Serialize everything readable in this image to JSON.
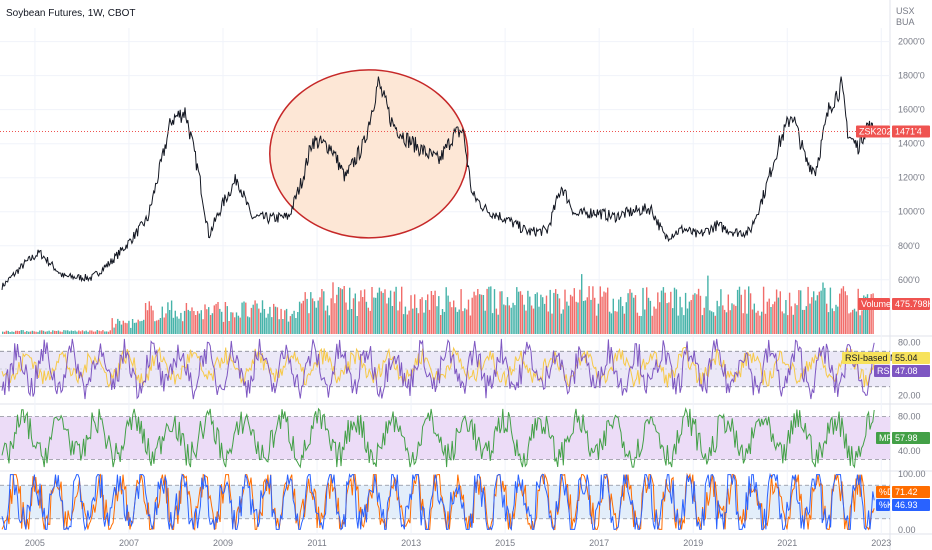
{
  "chart_data": {
    "type": "line",
    "title": "Soybean Futures, 1W, CBOT",
    "currency": "USX",
    "unit": "BUA",
    "x_ticks": [
      "2005",
      "2007",
      "2009",
      "2011",
      "2013",
      "2015",
      "2017",
      "2019",
      "2021",
      "2023"
    ],
    "x_range": [
      2004.6,
      2023.4
    ],
    "price": {
      "y_ticks": [
        "2000'0",
        "1800'0",
        "1600'0",
        "1400'0",
        "1200'0",
        "1000'0",
        "800'0",
        "600'0"
      ],
      "y_tick_values": [
        2000,
        1800,
        1600,
        1400,
        1200,
        1000,
        800,
        600
      ],
      "ylim": [
        540,
        2080
      ],
      "series": [
        {
          "x": 2004.6,
          "y": 560
        },
        {
          "x": 2005.1,
          "y": 700
        },
        {
          "x": 2005.4,
          "y": 760
        },
        {
          "x": 2005.9,
          "y": 620
        },
        {
          "x": 2006.5,
          "y": 610
        },
        {
          "x": 2006.9,
          "y": 700
        },
        {
          "x": 2007.3,
          "y": 820
        },
        {
          "x": 2007.7,
          "y": 960
        },
        {
          "x": 2008.0,
          "y": 1300
        },
        {
          "x": 2008.2,
          "y": 1540
        },
        {
          "x": 2008.5,
          "y": 1590
        },
        {
          "x": 2008.8,
          "y": 1200
        },
        {
          "x": 2009.0,
          "y": 860
        },
        {
          "x": 2009.3,
          "y": 1050
        },
        {
          "x": 2009.6,
          "y": 1200
        },
        {
          "x": 2009.9,
          "y": 970
        },
        {
          "x": 2010.3,
          "y": 960
        },
        {
          "x": 2010.7,
          "y": 970
        },
        {
          "x": 2011.0,
          "y": 1200
        },
        {
          "x": 2011.2,
          "y": 1420
        },
        {
          "x": 2011.6,
          "y": 1380
        },
        {
          "x": 2011.9,
          "y": 1200
        },
        {
          "x": 2012.3,
          "y": 1400
        },
        {
          "x": 2012.6,
          "y": 1760
        },
        {
          "x": 2012.9,
          "y": 1520
        },
        {
          "x": 2013.2,
          "y": 1430
        },
        {
          "x": 2013.6,
          "y": 1350
        },
        {
          "x": 2013.9,
          "y": 1300
        },
        {
          "x": 2014.2,
          "y": 1450
        },
        {
          "x": 2014.4,
          "y": 1480
        },
        {
          "x": 2014.6,
          "y": 1100
        },
        {
          "x": 2014.9,
          "y": 1010
        },
        {
          "x": 2015.3,
          "y": 960
        },
        {
          "x": 2015.8,
          "y": 880
        },
        {
          "x": 2016.2,
          "y": 890
        },
        {
          "x": 2016.5,
          "y": 1150
        },
        {
          "x": 2016.8,
          "y": 980
        },
        {
          "x": 2017.2,
          "y": 1000
        },
        {
          "x": 2017.6,
          "y": 970
        },
        {
          "x": 2018.0,
          "y": 1000
        },
        {
          "x": 2018.4,
          "y": 1020
        },
        {
          "x": 2018.7,
          "y": 850
        },
        {
          "x": 2019.1,
          "y": 900
        },
        {
          "x": 2019.4,
          "y": 860
        },
        {
          "x": 2019.8,
          "y": 920
        },
        {
          "x": 2020.2,
          "y": 880
        },
        {
          "x": 2020.5,
          "y": 880
        },
        {
          "x": 2020.8,
          "y": 1100
        },
        {
          "x": 2021.1,
          "y": 1380
        },
        {
          "x": 2021.4,
          "y": 1580
        },
        {
          "x": 2021.7,
          "y": 1300
        },
        {
          "x": 2021.9,
          "y": 1240
        },
        {
          "x": 2022.2,
          "y": 1620
        },
        {
          "x": 2022.45,
          "y": 1740
        },
        {
          "x": 2022.6,
          "y": 1450
        },
        {
          "x": 2022.8,
          "y": 1380
        },
        {
          "x": 2023.0,
          "y": 1510
        },
        {
          "x": 2023.15,
          "y": 1471
        }
      ],
      "last_label": "ZSK2023",
      "last_value": "1471'4",
      "last_numeric": 1471.5
    },
    "volume": {
      "label": "Volume",
      "value": "475.798K",
      "note": "weekly volume bars, green up / red down; low before 2007, rising to a plateau after 2011"
    },
    "rsi": {
      "y_ticks": [
        "80.00",
        "20.00"
      ],
      "ylim": [
        15,
        85
      ],
      "bands": [
        30,
        70
      ],
      "ma_label": "RSI-based MA",
      "ma_value": "55.04",
      "label": "RSI",
      "value": "47.08"
    },
    "mf": {
      "y_ticks": [
        "80.00",
        "40.00"
      ],
      "ylim": [
        20,
        90
      ],
      "bands": [
        20,
        80
      ],
      "label": "MF",
      "value": "57.98"
    },
    "stoch": {
      "y_ticks": [
        "100.00",
        "0.00"
      ],
      "ylim": [
        0,
        100
      ],
      "bands": [
        20,
        80
      ],
      "d_label": "%D",
      "d_value": "71.42",
      "k_label": "%K",
      "k_value": "46.93"
    },
    "annotation": "ellipse highlighting 2011–2014 price range",
    "colors": {
      "price_line": "#131722",
      "up": "#26a69a",
      "down": "#ef5350",
      "rsi_line": "#7e57c2",
      "rsi_ma": "#f7c948",
      "mf_line": "#43a047",
      "mf_fill": "#ecdcf7",
      "rsi_fill": "#ebe8f7",
      "stoch_fill": "#e3eefa",
      "stoch_d": "#ff6d00",
      "stoch_k": "#2962ff",
      "ellipse_stroke": "#c62828",
      "ellipse_fill": "#fde7d6"
    }
  }
}
